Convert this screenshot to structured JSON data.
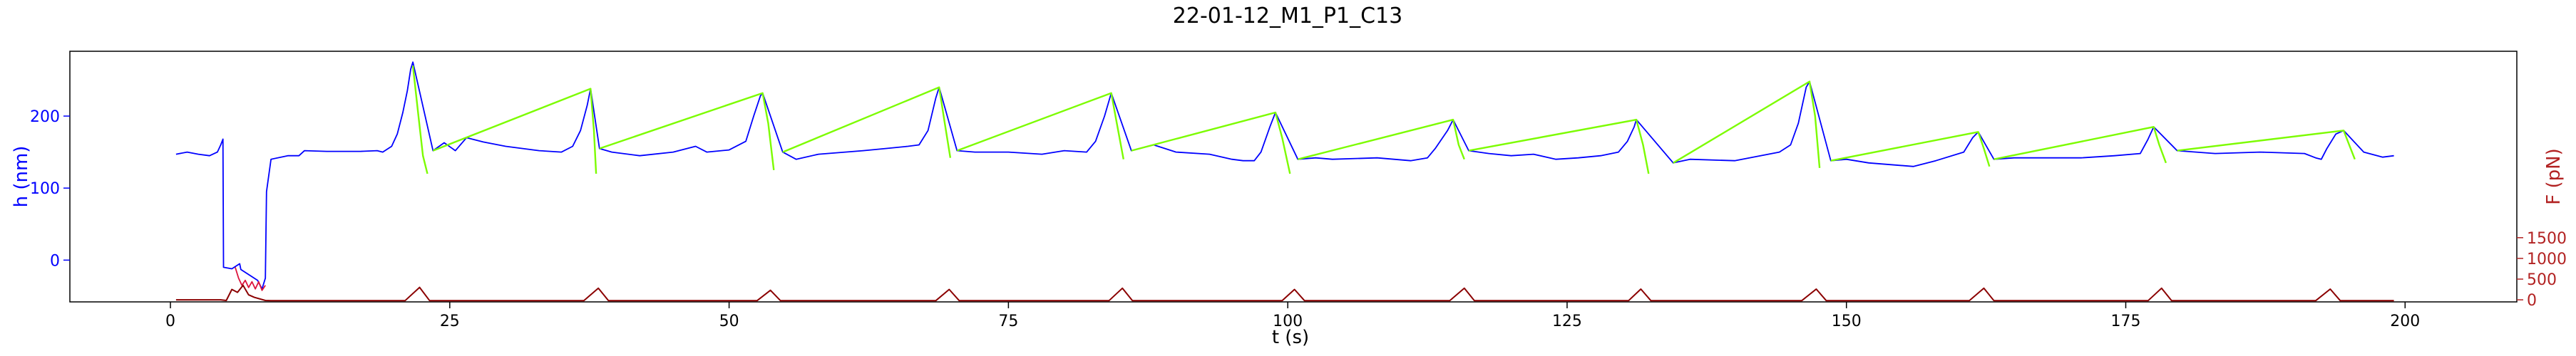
{
  "chart_data": {
    "type": "line",
    "title": "22-01-12_M1_P1_C13",
    "xlabel": "t (s)",
    "ylabel_left": "h (nm)",
    "ylabel_right": "F (pN)",
    "xlim": [
      -9,
      210
    ],
    "ylim_left": [
      -58,
      290
    ],
    "ylim_right": [
      -50,
      6000
    ],
    "x_ticks": [
      0,
      25,
      50,
      75,
      100,
      125,
      150,
      175,
      200
    ],
    "y_ticks_left": [
      0,
      100,
      200
    ],
    "y_ticks_right": [
      0,
      500,
      1000,
      1500
    ],
    "grid": false,
    "colors": {
      "height_baseline": "#0000ff",
      "height_relaxation": "#7cfc00",
      "height_contact": "#dc143c",
      "force": "#8b0000",
      "left_axis": "#0000ff",
      "right_axis": "#b22222"
    },
    "series": [
      {
        "role": "height-baseline",
        "axis": "left",
        "points": [
          [
            0.5,
            147
          ],
          [
            1.5,
            150
          ],
          [
            2.5,
            147
          ],
          [
            3.5,
            145
          ],
          [
            4.2,
            150
          ],
          [
            4.5,
            160
          ],
          [
            4.7,
            168
          ],
          [
            4.75,
            -10
          ],
          [
            5.5,
            -12
          ],
          [
            6.2,
            -5
          ],
          [
            6.3,
            -13
          ],
          [
            7.8,
            -28
          ],
          [
            8.2,
            -40
          ],
          [
            8.5,
            -25
          ],
          [
            8.6,
            95
          ],
          [
            9.0,
            140
          ],
          [
            10.5,
            145
          ],
          [
            11.5,
            145
          ],
          [
            12,
            152
          ],
          [
            14,
            151
          ],
          [
            17,
            151
          ],
          [
            18.5,
            152
          ],
          [
            19.0,
            150
          ],
          [
            19.8,
            158
          ],
          [
            20.3,
            175
          ],
          [
            20.8,
            205
          ],
          [
            21.2,
            235
          ],
          [
            21.5,
            265
          ],
          [
            21.7,
            275
          ],
          [
            23.5,
            152
          ],
          [
            24.5,
            163
          ],
          [
            25.5,
            152
          ],
          [
            26.5,
            170
          ],
          [
            28,
            164
          ],
          [
            30,
            158
          ],
          [
            33,
            152
          ],
          [
            35,
            150
          ],
          [
            36.0,
            158
          ],
          [
            36.7,
            180
          ],
          [
            37.3,
            215
          ],
          [
            37.6,
            238
          ],
          [
            38.4,
            155
          ],
          [
            39.5,
            150
          ],
          [
            42,
            145
          ],
          [
            45,
            150
          ],
          [
            47,
            158
          ],
          [
            48,
            150
          ],
          [
            50,
            153
          ],
          [
            51.5,
            165
          ],
          [
            52.2,
            200
          ],
          [
            52.8,
            228
          ],
          [
            53.0,
            232
          ],
          [
            54.8,
            150
          ],
          [
            56,
            140
          ],
          [
            58,
            147
          ],
          [
            62,
            152
          ],
          [
            64,
            155
          ],
          [
            66,
            158
          ],
          [
            67.0,
            160
          ],
          [
            67.8,
            180
          ],
          [
            68.5,
            225
          ],
          [
            68.8,
            240
          ],
          [
            70.4,
            152
          ],
          [
            72,
            150
          ],
          [
            75,
            150
          ],
          [
            78,
            147
          ],
          [
            80,
            152
          ],
          [
            82,
            150
          ],
          [
            82.8,
            165
          ],
          [
            83.6,
            200
          ],
          [
            84.2,
            232
          ],
          [
            86.0,
            152
          ],
          [
            88,
            160
          ],
          [
            90,
            150
          ],
          [
            93,
            147
          ],
          [
            95,
            140
          ],
          [
            96,
            138
          ],
          [
            97,
            138
          ],
          [
            97.6,
            150
          ],
          [
            98.4,
            185
          ],
          [
            98.9,
            205
          ],
          [
            100.9,
            140
          ],
          [
            102.5,
            142
          ],
          [
            104,
            140
          ],
          [
            108,
            142
          ],
          [
            111,
            138
          ],
          [
            112.5,
            142
          ],
          [
            113.2,
            155
          ],
          [
            114.3,
            180
          ],
          [
            114.8,
            195
          ],
          [
            116.2,
            152
          ],
          [
            118,
            148
          ],
          [
            120,
            145
          ],
          [
            122,
            147
          ],
          [
            124,
            140
          ],
          [
            126,
            142
          ],
          [
            128,
            145
          ],
          [
            129.6,
            150
          ],
          [
            130.4,
            165
          ],
          [
            131.0,
            185
          ],
          [
            131.2,
            195
          ],
          [
            134.5,
            135
          ],
          [
            136,
            140
          ],
          [
            140,
            138
          ],
          [
            144,
            150
          ],
          [
            145.0,
            160
          ],
          [
            145.7,
            190
          ],
          [
            146.4,
            240
          ],
          [
            146.7,
            248
          ],
          [
            148.6,
            138
          ],
          [
            150,
            140
          ],
          [
            152,
            135
          ],
          [
            156,
            130
          ],
          [
            158,
            138
          ],
          [
            160.5,
            150
          ],
          [
            161.3,
            170
          ],
          [
            161.8,
            178
          ],
          [
            163.2,
            140
          ],
          [
            165,
            142
          ],
          [
            167,
            142
          ],
          [
            171,
            142
          ],
          [
            174,
            145
          ],
          [
            176.3,
            148
          ],
          [
            177.0,
            168
          ],
          [
            177.5,
            185
          ],
          [
            179.6,
            152
          ],
          [
            183,
            148
          ],
          [
            187,
            150
          ],
          [
            191,
            148
          ],
          [
            192,
            142
          ],
          [
            192.5,
            140
          ],
          [
            193.0,
            155
          ],
          [
            193.8,
            175
          ],
          [
            194.5,
            180
          ],
          [
            196.3,
            150
          ],
          [
            198,
            143
          ],
          [
            199,
            145
          ]
        ]
      },
      {
        "role": "height-relaxation",
        "axis": "left",
        "points": [
          [
            21.7,
            270
          ],
          [
            22.2,
            200
          ],
          [
            22.6,
            145
          ],
          [
            23.0,
            120
          ],
          [
            23.5,
            152
          ],
          [
            37.6,
            238
          ],
          [
            37.9,
            180
          ],
          [
            38.1,
            120
          ],
          [
            38.4,
            155
          ],
          [
            53.0,
            232
          ],
          [
            53.5,
            190
          ],
          [
            54.0,
            125
          ],
          [
            54.8,
            150
          ],
          [
            68.8,
            240
          ],
          [
            69.3,
            190
          ],
          [
            69.8,
            142
          ],
          [
            70.4,
            152
          ],
          [
            84.2,
            232
          ],
          [
            84.7,
            190
          ],
          [
            85.3,
            140
          ],
          [
            86.0,
            152
          ],
          [
            98.9,
            205
          ],
          [
            99.5,
            170
          ],
          [
            100.2,
            120
          ],
          [
            100.9,
            140
          ],
          [
            114.8,
            195
          ],
          [
            115.3,
            160
          ],
          [
            115.8,
            140
          ],
          [
            116.2,
            152
          ],
          [
            131.2,
            195
          ],
          [
            131.8,
            160
          ],
          [
            132.3,
            120
          ],
          [
            134.5,
            135
          ],
          [
            146.7,
            248
          ],
          [
            147.2,
            200
          ],
          [
            147.6,
            128
          ],
          [
            148.6,
            138
          ],
          [
            161.8,
            178
          ],
          [
            162.3,
            155
          ],
          [
            162.8,
            130
          ],
          [
            163.2,
            140
          ],
          [
            177.5,
            185
          ],
          [
            178.0,
            160
          ],
          [
            178.6,
            135
          ],
          [
            179.6,
            152
          ],
          [
            194.5,
            180
          ],
          [
            195.0,
            160
          ],
          [
            195.5,
            140
          ],
          [
            196.3,
            150
          ]
        ]
      },
      {
        "role": "height-contact",
        "axis": "left",
        "points": [
          [
            5.8,
            -10
          ],
          [
            6.1,
            -25
          ],
          [
            6.4,
            -35
          ],
          [
            6.7,
            -28
          ],
          [
            7.0,
            -38
          ],
          [
            7.3,
            -30
          ],
          [
            7.6,
            -40
          ],
          [
            7.9,
            -30
          ],
          [
            8.2,
            -42
          ],
          [
            8.5,
            -35
          ]
        ]
      },
      {
        "role": "force",
        "axis": "right",
        "points": [
          [
            0.5,
            0
          ],
          [
            4.5,
            0
          ],
          [
            5.0,
            -15
          ],
          [
            5.5,
            250
          ],
          [
            6.0,
            180
          ],
          [
            6.5,
            350
          ],
          [
            7.0,
            120
          ],
          [
            7.5,
            60
          ],
          [
            8.5,
            -15
          ],
          [
            9.0,
            -20
          ],
          [
            19,
            -20
          ],
          [
            21.0,
            -20
          ],
          [
            22.3,
            300
          ],
          [
            23.2,
            -20
          ],
          [
            37,
            -20
          ],
          [
            38.3,
            280
          ],
          [
            39.2,
            -20
          ],
          [
            52.5,
            -20
          ],
          [
            53.7,
            230
          ],
          [
            54.6,
            -20
          ],
          [
            68.5,
            -20
          ],
          [
            69.7,
            250
          ],
          [
            70.6,
            -20
          ],
          [
            84,
            -20
          ],
          [
            85.2,
            280
          ],
          [
            86.1,
            -20
          ],
          [
            99.5,
            -20
          ],
          [
            100.6,
            250
          ],
          [
            101.5,
            -20
          ],
          [
            114.5,
            -20
          ],
          [
            115.8,
            280
          ],
          [
            116.7,
            -20
          ],
          [
            130.5,
            -20
          ],
          [
            131.6,
            260
          ],
          [
            132.5,
            -20
          ],
          [
            146,
            -20
          ],
          [
            147.3,
            260
          ],
          [
            148.2,
            -20
          ],
          [
            161,
            -20
          ],
          [
            162.3,
            280
          ],
          [
            163.2,
            -20
          ],
          [
            177,
            -20
          ],
          [
            178.2,
            280
          ],
          [
            179.1,
            -20
          ],
          [
            192,
            -20
          ],
          [
            193.3,
            260
          ],
          [
            194.2,
            -20
          ],
          [
            199,
            -20
          ]
        ]
      }
    ]
  }
}
